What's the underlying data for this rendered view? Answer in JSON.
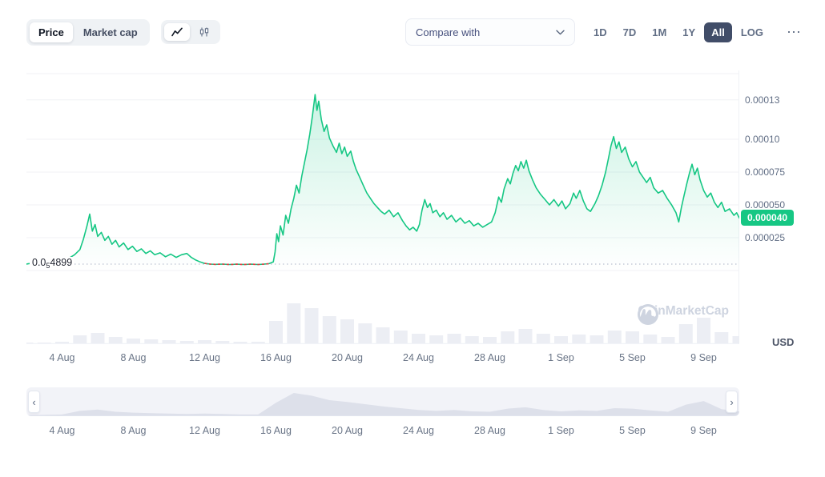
{
  "toolbar": {
    "metric_toggle": {
      "items": [
        {
          "label": "Price",
          "active": true
        },
        {
          "label": "Market cap",
          "active": false
        }
      ]
    },
    "chart_type_toggle": {
      "items": [
        {
          "icon": "line-chart-icon",
          "active": true
        },
        {
          "icon": "candlestick-icon",
          "active": false
        }
      ]
    },
    "compare_dropdown": {
      "label": "Compare with"
    },
    "range_buttons": [
      {
        "label": "1D",
        "active": false
      },
      {
        "label": "7D",
        "active": false
      },
      {
        "label": "1M",
        "active": false
      },
      {
        "label": "1Y",
        "active": false
      },
      {
        "label": "All",
        "active": true
      },
      {
        "label": "LOG",
        "active": false
      }
    ],
    "more_label": "⋯"
  },
  "axis_panel": {
    "currency": "USD"
  },
  "price_badge": {
    "label": "0.000040",
    "color": "#16c784"
  },
  "baseline_label": {
    "prefix": "0.0",
    "subscript": "5",
    "digits": "4899"
  },
  "navigator": {
    "left_arrow": "‹",
    "right_arrow": "›"
  },
  "watermark": {
    "text": "CoinMarketCap"
  },
  "chart_data": {
    "type": "line",
    "title": "",
    "ylabel": "Price (USD)",
    "y_unit": "USD x 1e-6",
    "x_unit": "days since 2 Aug",
    "x_domain": [
      0,
      40
    ],
    "y_range": [
      0,
      152
    ],
    "grid_values": [
      150,
      130,
      100,
      75,
      50,
      25,
      0
    ],
    "y_ticks": [
      {
        "value": 130,
        "label": "0.00013"
      },
      {
        "value": 100,
        "label": "0.00010"
      },
      {
        "value": 75,
        "label": "0.000075"
      },
      {
        "value": 50,
        "label": "0.000050"
      },
      {
        "value": 25,
        "label": "0.000025"
      }
    ],
    "x_ticks": [
      {
        "x": 2,
        "label": "4 Aug"
      },
      {
        "x": 6,
        "label": "8 Aug"
      },
      {
        "x": 10,
        "label": "12 Aug"
      },
      {
        "x": 14,
        "label": "16 Aug"
      },
      {
        "x": 18,
        "label": "20 Aug"
      },
      {
        "x": 22,
        "label": "24 Aug"
      },
      {
        "x": 26,
        "label": "28 Aug"
      },
      {
        "x": 30,
        "label": "1 Sep"
      },
      {
        "x": 34,
        "label": "5 Sep"
      },
      {
        "x": 38,
        "label": "9 Sep"
      }
    ],
    "baseline": {
      "value": 4.899,
      "label": "0.0(5)4899"
    },
    "current": {
      "value": 40,
      "label": "0.000040"
    },
    "line_color": "#16c784",
    "red_segment": {
      "x_start": 9.9,
      "x_end": 13.7,
      "color": "#ea3943",
      "style": "dashed"
    },
    "series": [
      {
        "name": "price",
        "color": "#16c784",
        "points": [
          [
            0,
            4.9
          ],
          [
            0.3,
            5.6
          ],
          [
            0.6,
            5.0
          ],
          [
            0.9,
            6.0
          ],
          [
            1.2,
            5.4
          ],
          [
            1.5,
            6.4
          ],
          [
            1.8,
            5.8
          ],
          [
            2.1,
            7.5
          ],
          [
            2.4,
            9.5
          ],
          [
            2.7,
            12
          ],
          [
            3.0,
            16
          ],
          [
            3.2,
            24
          ],
          [
            3.4,
            34
          ],
          [
            3.55,
            43
          ],
          [
            3.7,
            30
          ],
          [
            3.85,
            35
          ],
          [
            4.0,
            26
          ],
          [
            4.2,
            29
          ],
          [
            4.4,
            23
          ],
          [
            4.6,
            26
          ],
          [
            4.8,
            20
          ],
          [
            5.0,
            23
          ],
          [
            5.2,
            18
          ],
          [
            5.45,
            21
          ],
          [
            5.7,
            16
          ],
          [
            5.95,
            18.5
          ],
          [
            6.2,
            14.5
          ],
          [
            6.45,
            16.5
          ],
          [
            6.7,
            13
          ],
          [
            6.95,
            15
          ],
          [
            7.2,
            12
          ],
          [
            7.5,
            13.5
          ],
          [
            7.8,
            10.5
          ],
          [
            8.1,
            12.5
          ],
          [
            8.4,
            10
          ],
          [
            8.7,
            12
          ],
          [
            9.0,
            13
          ],
          [
            9.25,
            10
          ],
          [
            9.5,
            8
          ],
          [
            9.75,
            6.5
          ],
          [
            10,
            5.4
          ],
          [
            10.3,
            4.9
          ],
          [
            10.6,
            4.7
          ],
          [
            11,
            4.9
          ],
          [
            11.4,
            4.6
          ],
          [
            11.8,
            4.8
          ],
          [
            12.2,
            4.6
          ],
          [
            12.6,
            4.8
          ],
          [
            13,
            4.6
          ],
          [
            13.3,
            4.8
          ],
          [
            13.6,
            5.2
          ],
          [
            13.85,
            6.5
          ],
          [
            13.95,
            14
          ],
          [
            14.05,
            28
          ],
          [
            14.15,
            22
          ],
          [
            14.25,
            34
          ],
          [
            14.4,
            27
          ],
          [
            14.55,
            42
          ],
          [
            14.7,
            36
          ],
          [
            14.85,
            47
          ],
          [
            15,
            55
          ],
          [
            15.15,
            65
          ],
          [
            15.3,
            59
          ],
          [
            15.45,
            72
          ],
          [
            15.6,
            82
          ],
          [
            15.75,
            92
          ],
          [
            15.9,
            104
          ],
          [
            16.05,
            118
          ],
          [
            16.2,
            134
          ],
          [
            16.3,
            122
          ],
          [
            16.4,
            129
          ],
          [
            16.55,
            115
          ],
          [
            16.7,
            106
          ],
          [
            16.85,
            111
          ],
          [
            17,
            101
          ],
          [
            17.2,
            95
          ],
          [
            17.4,
            90
          ],
          [
            17.55,
            97
          ],
          [
            17.7,
            89
          ],
          [
            17.85,
            94
          ],
          [
            18,
            87
          ],
          [
            18.2,
            91
          ],
          [
            18.35,
            83
          ],
          [
            18.5,
            77
          ],
          [
            18.7,
            71
          ],
          [
            18.9,
            65
          ],
          [
            19.1,
            59
          ],
          [
            19.3,
            55
          ],
          [
            19.5,
            51
          ],
          [
            19.7,
            48
          ],
          [
            19.9,
            45
          ],
          [
            20.1,
            43
          ],
          [
            20.35,
            46
          ],
          [
            20.6,
            41
          ],
          [
            20.85,
            44
          ],
          [
            21.1,
            38
          ],
          [
            21.3,
            34
          ],
          [
            21.5,
            31
          ],
          [
            21.7,
            33
          ],
          [
            21.9,
            30
          ],
          [
            22.05,
            35
          ],
          [
            22.2,
            46
          ],
          [
            22.35,
            54
          ],
          [
            22.5,
            48
          ],
          [
            22.65,
            51
          ],
          [
            22.8,
            44
          ],
          [
            23,
            46
          ],
          [
            23.2,
            41
          ],
          [
            23.4,
            44
          ],
          [
            23.6,
            39
          ],
          [
            23.85,
            42
          ],
          [
            24.1,
            37
          ],
          [
            24.35,
            40
          ],
          [
            24.6,
            36
          ],
          [
            24.85,
            38
          ],
          [
            25.1,
            34
          ],
          [
            25.35,
            36
          ],
          [
            25.6,
            33
          ],
          [
            25.85,
            35
          ],
          [
            26.1,
            37
          ],
          [
            26.3,
            44
          ],
          [
            26.5,
            56
          ],
          [
            26.65,
            52
          ],
          [
            26.8,
            62
          ],
          [
            27,
            70
          ],
          [
            27.15,
            66
          ],
          [
            27.3,
            74
          ],
          [
            27.45,
            80
          ],
          [
            27.6,
            76
          ],
          [
            27.75,
            83
          ],
          [
            27.9,
            78
          ],
          [
            28.05,
            84
          ],
          [
            28.2,
            76
          ],
          [
            28.4,
            69
          ],
          [
            28.6,
            63
          ],
          [
            28.85,
            58
          ],
          [
            29.1,
            54
          ],
          [
            29.35,
            50
          ],
          [
            29.6,
            54
          ],
          [
            29.85,
            49
          ],
          [
            30.05,
            53
          ],
          [
            30.25,
            47
          ],
          [
            30.5,
            51
          ],
          [
            30.7,
            59
          ],
          [
            30.85,
            55
          ],
          [
            31.05,
            61
          ],
          [
            31.25,
            53
          ],
          [
            31.45,
            47
          ],
          [
            31.65,
            45
          ],
          [
            31.9,
            51
          ],
          [
            32.1,
            57
          ],
          [
            32.3,
            65
          ],
          [
            32.5,
            75
          ],
          [
            32.65,
            85
          ],
          [
            32.8,
            95
          ],
          [
            32.95,
            102
          ],
          [
            33.1,
            93
          ],
          [
            33.25,
            98
          ],
          [
            33.4,
            90
          ],
          [
            33.6,
            94
          ],
          [
            33.8,
            85
          ],
          [
            34,
            79
          ],
          [
            34.2,
            83
          ],
          [
            34.4,
            75
          ],
          [
            34.6,
            71
          ],
          [
            34.8,
            67
          ],
          [
            35,
            71
          ],
          [
            35.2,
            63
          ],
          [
            35.45,
            59
          ],
          [
            35.7,
            61
          ],
          [
            35.95,
            55
          ],
          [
            36.2,
            50
          ],
          [
            36.45,
            44
          ],
          [
            36.6,
            37
          ],
          [
            36.75,
            48
          ],
          [
            36.9,
            57
          ],
          [
            37.05,
            66
          ],
          [
            37.2,
            74
          ],
          [
            37.35,
            81
          ],
          [
            37.5,
            73
          ],
          [
            37.65,
            78
          ],
          [
            37.8,
            69
          ],
          [
            38,
            61
          ],
          [
            38.2,
            56
          ],
          [
            38.4,
            59
          ],
          [
            38.6,
            52
          ],
          [
            38.8,
            48
          ],
          [
            39,
            52
          ],
          [
            39.2,
            45
          ],
          [
            39.45,
            47
          ],
          [
            39.7,
            42
          ],
          [
            39.85,
            44
          ],
          [
            40,
            40
          ]
        ]
      }
    ],
    "volume": {
      "color": "#eceef4",
      "max": 50,
      "values": [
        1,
        1,
        2,
        10,
        13,
        8,
        6,
        5,
        4,
        3,
        4,
        3,
        2,
        2,
        28,
        50,
        44,
        34,
        30,
        25,
        20,
        16,
        12,
        10,
        12,
        9,
        8,
        15,
        18,
        12,
        9,
        11,
        10,
        16,
        15,
        11,
        8,
        24,
        32,
        14,
        9
      ]
    }
  }
}
